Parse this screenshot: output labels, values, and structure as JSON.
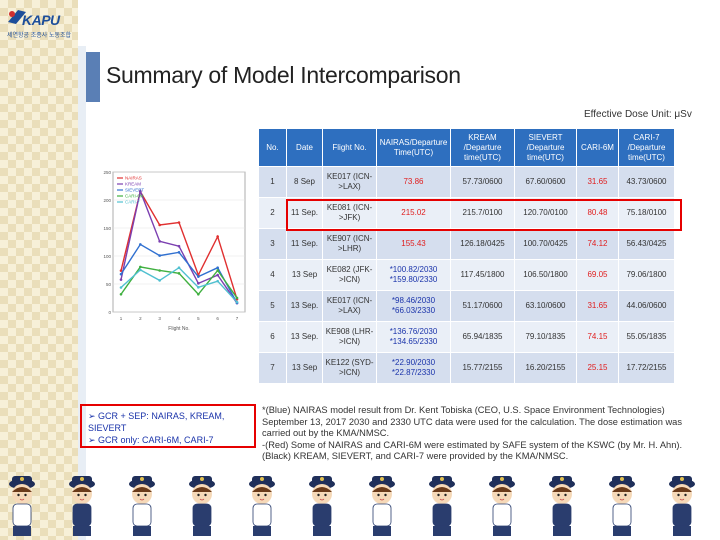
{
  "logo": {
    "name": "KAPU",
    "subtitle": "세연항공 조종사 노동조합"
  },
  "slide": {
    "title": "Summary of Model Intercomparison",
    "unit": "Effective Dose Unit: μSv"
  },
  "table": {
    "headers": [
      "No.",
      "Date",
      "Flight No.",
      "NAIRAS/Departure Time(UTC)",
      "KREAM /Departure time(UTC)",
      "SIEVERT /Departure time(UTC)",
      "CARI-6M",
      "CARI-7 /Departure time(UTC)"
    ],
    "rows": [
      {
        "no": "1",
        "date": "8 Sep",
        "flight": "KE017 (ICN->LAX)",
        "nairas": "73.86",
        "kream": "57.73/0600",
        "sievert": "67.60/0600",
        "cari6m": "31.65",
        "cari7": "43.73/0600"
      },
      {
        "no": "2",
        "date": "11 Sep.",
        "flight": "KE081 (ICN->JFK)",
        "nairas": "215.02",
        "kream": "215.7/0100",
        "sievert": "120.70/0100",
        "cari6m": "80.48",
        "cari7": "75.18/0100"
      },
      {
        "no": "3",
        "date": "11 Sep.",
        "flight": "KE907 (ICN->LHR)",
        "nairas": "155.43",
        "kream": "126.18/0425",
        "sievert": "100.70/0425",
        "cari6m": "74.12",
        "cari7": "56.43/0425"
      },
      {
        "no": "4",
        "date": "13 Sep",
        "flight": "KE082 (JFK->ICN)",
        "nairas": "*100.82/2030 *159.80/2330",
        "kream": "117.45/1800",
        "sievert": "106.50/1800",
        "cari6m": "69.05",
        "cari7": "79.06/1800"
      },
      {
        "no": "5",
        "date": "13 Sep.",
        "flight": "KE017 (ICN->LAX)",
        "nairas": "*98.46/2030 *66.03/2330",
        "kream": "51.17/0600",
        "sievert": "63.10/0600",
        "cari6m": "31.65",
        "cari7": "44.06/0600"
      },
      {
        "no": "6",
        "date": "13 Sep.",
        "flight": "KE908 (LHR->ICN)",
        "nairas": "*136.76/2030 *134.65/2330",
        "kream": "65.94/1835",
        "sievert": "79.10/1835",
        "cari6m": "74.15",
        "cari7": "55.05/1835"
      },
      {
        "no": "7",
        "date": "13 Sep",
        "flight": "KE122 (SYD->ICN)",
        "nairas": "*22.90/2030 *22.87/2330",
        "kream": "15.77/2155",
        "sievert": "16.20/2155",
        "cari6m": "25.15",
        "cari7": "17.72/2155"
      }
    ]
  },
  "legend_box": {
    "line1": "GCR + SEP: NAIRAS, KREAM, SIEVERT",
    "line2": "GCR only: CARI-6M, CARI-7"
  },
  "notes": {
    "blue_note": "*(Blue) NAIRAS model result from Dr. Kent Tobiska (CEO, U.S. Space Environment Technologies) September 13, 2017 2030 and 2330 UTC data were used for the calculation. The dose estimation was carried out by the KMA/NMSC.",
    "red_note": "-(Red) Some of NAIRAS and CARI-6M were estimated by SAFE system of the KSWC (by Mr. H. Ahn).",
    "black_note": "(Black) KREAM, SIEVERT, and CARI-7 were provided by the KMA/NMSC."
  },
  "chart_data": {
    "type": "line",
    "categories": [
      "1",
      "2",
      "3",
      "4",
      "5",
      "6",
      "7"
    ],
    "xlabel": "Flight No.",
    "ylabel": "",
    "ylim": [
      0,
      250
    ],
    "series": [
      {
        "name": "NAIRAS",
        "color": "#e03030",
        "values": [
          73.86,
          215.02,
          155.43,
          159.8,
          66.03,
          134.65,
          22.87
        ]
      },
      {
        "name": "KREAM",
        "color": "#7b3fb0",
        "values": [
          57.73,
          215.7,
          126.18,
          117.45,
          51.17,
          65.94,
          15.77
        ]
      },
      {
        "name": "SIEVERT",
        "color": "#3070d0",
        "values": [
          67.6,
          120.7,
          100.7,
          106.5,
          63.1,
          79.1,
          16.2
        ]
      },
      {
        "name": "CARI-6M",
        "color": "#40b040",
        "values": [
          31.65,
          80.48,
          74.12,
          69.05,
          31.65,
          74.15,
          25.15
        ]
      },
      {
        "name": "CARI-7",
        "color": "#50c0d0",
        "values": [
          43.73,
          75.18,
          56.43,
          79.06,
          44.06,
          55.05,
          17.72
        ]
      }
    ]
  }
}
